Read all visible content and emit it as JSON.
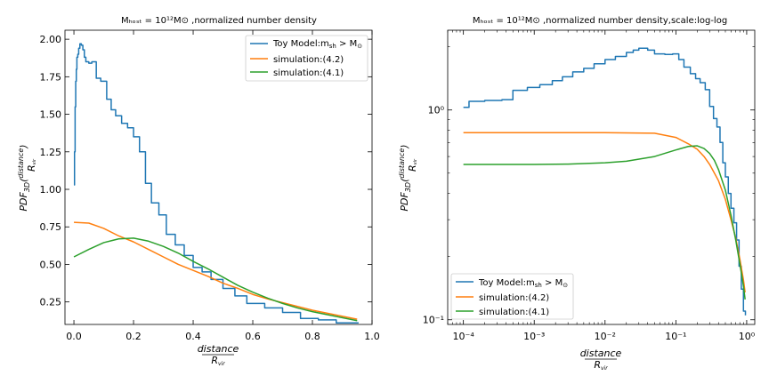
{
  "chart_data": [
    {
      "type": "line",
      "title": "M_host = 10^12 M_☉ ,normalized number density",
      "title_display": "Mₕₒₛₜ = 10¹²M⊙ ,normalized number density",
      "xlabel": "distance / R_vir",
      "ylabel": "PDF_3D(distance / R_vir)",
      "xscale": "linear",
      "yscale": "linear",
      "xlim": [
        -0.03,
        1.0
      ],
      "ylim": [
        0.1,
        2.06
      ],
      "xticks": [
        0.0,
        0.2,
        0.4,
        0.6,
        0.8,
        1.0
      ],
      "xtick_labels": [
        "0.0",
        "0.2",
        "0.4",
        "0.6",
        "0.8",
        "1.0"
      ],
      "yticks": [
        0.25,
        0.5,
        0.75,
        1.0,
        1.25,
        1.5,
        1.75,
        2.0
      ],
      "ytick_labels": [
        "0.25",
        "0.50",
        "0.75",
        "1.00",
        "1.25",
        "1.50",
        "1.75",
        "2.00"
      ],
      "legend_position": "top-right",
      "series": [
        {
          "name": "Toy Model:m_sh > M_☉",
          "color": "#1f77b4",
          "drawstyle": "steps",
          "x": [
            0.0,
            0.002,
            0.004,
            0.006,
            0.008,
            0.01,
            0.013,
            0.016,
            0.02,
            0.025,
            0.03,
            0.035,
            0.04,
            0.05,
            0.06,
            0.075,
            0.09,
            0.11,
            0.125,
            0.14,
            0.16,
            0.18,
            0.2,
            0.22,
            0.24,
            0.26,
            0.285,
            0.31,
            0.34,
            0.37,
            0.4,
            0.43,
            0.46,
            0.5,
            0.54,
            0.58,
            0.64,
            0.7,
            0.76,
            0.82,
            0.88,
            0.955
          ],
          "y": [
            1.03,
            1.25,
            1.55,
            1.72,
            1.8,
            1.88,
            1.9,
            1.94,
            1.97,
            1.96,
            1.93,
            1.88,
            1.85,
            1.84,
            1.85,
            1.74,
            1.72,
            1.6,
            1.53,
            1.49,
            1.44,
            1.41,
            1.35,
            1.25,
            1.04,
            0.91,
            0.83,
            0.7,
            0.63,
            0.56,
            0.48,
            0.45,
            0.4,
            0.34,
            0.29,
            0.24,
            0.21,
            0.18,
            0.14,
            0.13,
            0.11,
            0.11
          ]
        },
        {
          "name": "simulation:(4.2)",
          "color": "#ff7f0e",
          "drawstyle": "line",
          "x": [
            0.0,
            0.05,
            0.1,
            0.15,
            0.2,
            0.25,
            0.3,
            0.35,
            0.4,
            0.45,
            0.5,
            0.55,
            0.6,
            0.65,
            0.7,
            0.75,
            0.8,
            0.85,
            0.9,
            0.95
          ],
          "y": [
            0.78,
            0.775,
            0.74,
            0.69,
            0.65,
            0.6,
            0.55,
            0.5,
            0.46,
            0.42,
            0.375,
            0.34,
            0.3,
            0.27,
            0.245,
            0.22,
            0.195,
            0.175,
            0.155,
            0.135
          ]
        },
        {
          "name": "simulation:(4.1)",
          "color": "#2ca02c",
          "drawstyle": "line",
          "x": [
            0.0,
            0.05,
            0.1,
            0.15,
            0.2,
            0.25,
            0.3,
            0.35,
            0.4,
            0.45,
            0.5,
            0.55,
            0.6,
            0.65,
            0.7,
            0.75,
            0.8,
            0.85,
            0.9,
            0.95
          ],
          "y": [
            0.55,
            0.6,
            0.645,
            0.67,
            0.675,
            0.655,
            0.62,
            0.575,
            0.52,
            0.47,
            0.415,
            0.36,
            0.315,
            0.275,
            0.24,
            0.21,
            0.185,
            0.165,
            0.145,
            0.125
          ]
        }
      ]
    },
    {
      "type": "line",
      "title": "M_host = 10^12 M_☉ ,normalized number density,scale:log-log",
      "title_display": "Mₕₒₛₜ = 10¹²M⊙ ,normalized number density,scale:log-log",
      "xlabel": "distance / R_vir",
      "ylabel": "PDF_3D(distance / R_vir)",
      "xscale": "log",
      "yscale": "log",
      "xlim": [
        6e-05,
        1.3
      ],
      "ylim": [
        0.095,
        2.4
      ],
      "xticks": [
        0.0001,
        0.001,
        0.01,
        0.1,
        1
      ],
      "xtick_labels": [
        "10⁻⁴",
        "10⁻³",
        "10⁻²",
        "10⁻¹",
        "10⁰"
      ],
      "yticks": [
        0.1,
        1
      ],
      "ytick_labels": [
        "10⁻¹",
        "10⁰"
      ],
      "legend_position": "bottom-left",
      "series": [
        {
          "name": "Toy Model:m_sh > M_☉",
          "color": "#1f77b4",
          "drawstyle": "steps",
          "x": [
            0.0001,
            0.00012,
            0.0002,
            0.00035,
            0.0005,
            0.0008,
            0.0012,
            0.0018,
            0.0025,
            0.0035,
            0.005,
            0.007,
            0.01,
            0.014,
            0.02,
            0.025,
            0.03,
            0.04,
            0.05,
            0.07,
            0.09,
            0.11,
            0.13,
            0.16,
            0.19,
            0.22,
            0.26,
            0.3,
            0.34,
            0.38,
            0.42,
            0.46,
            0.5,
            0.55,
            0.6,
            0.66,
            0.72,
            0.78,
            0.84,
            0.9,
            0.96
          ],
          "y": [
            1.03,
            1.1,
            1.11,
            1.12,
            1.24,
            1.28,
            1.32,
            1.38,
            1.44,
            1.52,
            1.58,
            1.66,
            1.74,
            1.8,
            1.88,
            1.93,
            1.97,
            1.93,
            1.85,
            1.84,
            1.85,
            1.74,
            1.6,
            1.49,
            1.41,
            1.35,
            1.25,
            1.04,
            0.91,
            0.83,
            0.7,
            0.56,
            0.48,
            0.4,
            0.34,
            0.29,
            0.24,
            0.18,
            0.14,
            0.11,
            0.105
          ]
        },
        {
          "name": "simulation:(4.2)",
          "color": "#ff7f0e",
          "drawstyle": "line",
          "x": [
            0.0001,
            0.001,
            0.01,
            0.05,
            0.1,
            0.15,
            0.2,
            0.25,
            0.3,
            0.35,
            0.4,
            0.5,
            0.6,
            0.7,
            0.8,
            0.9,
            0.95
          ],
          "y": [
            0.78,
            0.78,
            0.78,
            0.775,
            0.74,
            0.69,
            0.65,
            0.6,
            0.55,
            0.5,
            0.46,
            0.375,
            0.3,
            0.245,
            0.195,
            0.155,
            0.135
          ]
        },
        {
          "name": "simulation:(4.1)",
          "color": "#2ca02c",
          "drawstyle": "line",
          "x": [
            0.0001,
            0.001,
            0.003,
            0.01,
            0.02,
            0.05,
            0.1,
            0.15,
            0.2,
            0.25,
            0.3,
            0.35,
            0.4,
            0.5,
            0.6,
            0.7,
            0.8,
            0.9,
            0.95
          ],
          "y": [
            0.55,
            0.55,
            0.552,
            0.56,
            0.57,
            0.6,
            0.645,
            0.67,
            0.675,
            0.655,
            0.62,
            0.575,
            0.52,
            0.415,
            0.315,
            0.24,
            0.185,
            0.145,
            0.125
          ]
        }
      ]
    }
  ],
  "legend_labels": {
    "toy": "Toy Model:m",
    "toy_sub": "sh",
    "toy_rest": " > M",
    "toy_sun": "⊙",
    "sim42": "simulation:(4.2)",
    "sim41": "simulation:(4.1)"
  }
}
